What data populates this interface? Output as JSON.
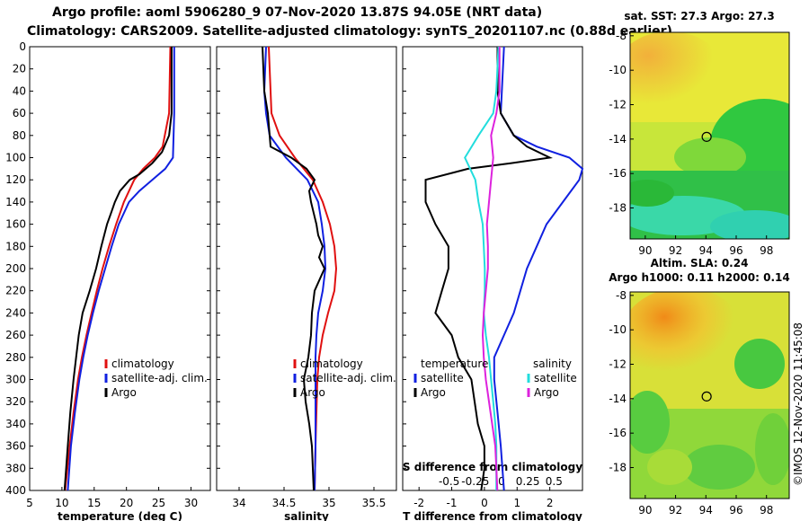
{
  "header": {
    "line1": "Argo profile: aoml 5906280_9 07-Nov-2020 13.87S 94.05E (NRT data)",
    "line2": "Climatology: CARS2009. Satellite-adjusted climatology: synTS_20201107.nc (0.88d earlier)"
  },
  "colors": {
    "climatology": "#e01010",
    "satellite_clim": "#1020e0",
    "argo": "#000000",
    "sat_temp_diff": "#22dddd",
    "sat_sal_diff": "#dd22dd"
  },
  "legend": {
    "climatology": "climatology",
    "satellite": "satellite-adj. clim.",
    "argo": "Argo",
    "diff_temp_title": "temperature",
    "diff_sal_title": "salinity",
    "diff_satellite": "satellite",
    "diff_argo": "Argo"
  },
  "chart_data": [
    {
      "type": "line",
      "name": "temperature-profile",
      "xlabel": "temperature (deg C)",
      "ylabel": "",
      "xlim": [
        5,
        33
      ],
      "ylim": [
        400,
        0
      ],
      "xticks": [
        5,
        10,
        15,
        20,
        25,
        30
      ],
      "yticks": [
        0,
        20,
        40,
        60,
        80,
        100,
        120,
        140,
        160,
        180,
        200,
        220,
        240,
        260,
        280,
        300,
        320,
        340,
        360,
        380,
        400
      ],
      "series": [
        {
          "name": "climatology",
          "depth": [
            0,
            60,
            90,
            100,
            110,
            120,
            140,
            160,
            180,
            200,
            220,
            240,
            260,
            280,
            300,
            330,
            360,
            400
          ],
          "values": [
            26.8,
            26.6,
            25.6,
            24.4,
            22.6,
            21.2,
            19.6,
            18.4,
            17.3,
            16.3,
            15.4,
            14.6,
            13.8,
            13.1,
            12.5,
            11.8,
            11.2,
            10.5
          ]
        },
        {
          "name": "satellite-adj. clim.",
          "depth": [
            0,
            60,
            100,
            110,
            120,
            130,
            140,
            160,
            180,
            200,
            220,
            240,
            260,
            280,
            300,
            330,
            360,
            400
          ],
          "values": [
            27.4,
            27.4,
            27.2,
            26.0,
            24.0,
            22.0,
            20.4,
            18.8,
            17.7,
            16.7,
            15.7,
            14.8,
            14.0,
            13.3,
            12.7,
            12.0,
            11.4,
            10.9
          ]
        },
        {
          "name": "Argo",
          "depth": [
            0,
            60,
            80,
            95,
            105,
            115,
            120,
            130,
            140,
            150,
            160,
            180,
            200,
            220,
            240,
            260,
            280,
            300,
            330,
            360,
            400
          ],
          "values": [
            27.0,
            27.0,
            26.6,
            25.5,
            24.0,
            22.0,
            20.5,
            19.0,
            18.2,
            17.6,
            17.0,
            16.1,
            15.3,
            14.3,
            13.2,
            12.6,
            12.2,
            11.8,
            11.3,
            10.9,
            10.4
          ]
        }
      ]
    },
    {
      "type": "line",
      "name": "salinity-profile",
      "xlabel": "salinity",
      "xlim": [
        33.75,
        35.75
      ],
      "ylim": [
        400,
        0
      ],
      "xticks": [
        34,
        34.5,
        35,
        35.5
      ],
      "series": [
        {
          "name": "climatology",
          "depth": [
            0,
            60,
            80,
            100,
            120,
            140,
            160,
            180,
            200,
            220,
            240,
            260,
            280,
            300,
            330,
            360,
            400
          ],
          "values": [
            34.33,
            34.36,
            34.45,
            34.62,
            34.82,
            34.93,
            35.01,
            35.06,
            35.08,
            35.06,
            34.99,
            34.93,
            34.89,
            34.87,
            34.86,
            34.85,
            34.84
          ]
        },
        {
          "name": "satellite-adj. clim.",
          "depth": [
            0,
            40,
            60,
            80,
            100,
            120,
            140,
            160,
            180,
            200,
            220,
            240,
            260,
            280,
            300,
            330,
            360,
            400
          ],
          "values": [
            34.3,
            34.28,
            34.3,
            34.34,
            34.52,
            34.76,
            34.88,
            34.92,
            34.95,
            34.96,
            34.93,
            34.88,
            34.86,
            34.85,
            34.85,
            34.85,
            34.85,
            34.84
          ]
        },
        {
          "name": "Argo",
          "depth": [
            0,
            40,
            60,
            90,
            100,
            110,
            120,
            130,
            140,
            150,
            160,
            170,
            180,
            190,
            200,
            220,
            240,
            260,
            280,
            300,
            320,
            340,
            360,
            400
          ],
          "values": [
            34.26,
            34.28,
            34.32,
            34.35,
            34.58,
            34.75,
            34.84,
            34.78,
            34.8,
            34.83,
            34.86,
            34.88,
            34.93,
            34.89,
            34.95,
            34.84,
            34.81,
            34.8,
            34.77,
            34.72,
            34.74,
            34.78,
            34.81,
            34.83
          ]
        }
      ]
    },
    {
      "type": "line",
      "name": "difference-profile",
      "xlabel": "T difference from climatology",
      "xlabel_top": "S difference from climatology",
      "xlim": [
        -2.5,
        3
      ],
      "ylim": [
        400,
        0
      ],
      "xticks": [
        -2,
        -1,
        0,
        1,
        2
      ],
      "xticks_top": [
        -0.5,
        -0.25,
        0,
        0.25,
        0.5
      ],
      "series": [
        {
          "name": "satellite (temperature)",
          "depth": [
            0,
            60,
            80,
            90,
            100,
            110,
            120,
            140,
            160,
            180,
            200,
            220,
            240,
            260,
            280,
            300,
            330,
            360,
            400
          ],
          "values": [
            0.6,
            0.5,
            0.9,
            1.6,
            2.6,
            3.0,
            2.9,
            2.4,
            1.9,
            1.6,
            1.3,
            1.1,
            0.9,
            0.6,
            0.3,
            0.3,
            0.4,
            0.5,
            0.6
          ]
        },
        {
          "name": "Argo (temperature)",
          "depth": [
            0,
            40,
            60,
            80,
            90,
            100,
            105,
            110,
            120,
            140,
            160,
            180,
            200,
            220,
            240,
            260,
            280,
            300,
            320,
            340,
            360,
            380,
            400
          ],
          "values": [
            0.4,
            0.4,
            0.5,
            0.9,
            1.3,
            2.0,
            0.8,
            -0.5,
            -1.8,
            -1.8,
            -1.5,
            -1.1,
            -1.1,
            -1.3,
            -1.5,
            -1.0,
            -0.8,
            -0.4,
            -0.3,
            -0.2,
            0.0,
            0.0,
            -0.1
          ]
        },
        {
          "name": "satellite (salinity)",
          "depth": [
            0,
            40,
            60,
            80,
            100,
            120,
            140,
            160,
            180,
            200,
            220,
            240,
            260,
            280,
            300,
            320,
            340,
            360,
            380,
            400
          ],
          "values": [
            -0.03,
            -0.05,
            -0.08,
            -0.22,
            -0.35,
            -0.25,
            -0.22,
            -0.18,
            -0.17,
            -0.16,
            -0.16,
            -0.17,
            -0.15,
            -0.12,
            -0.1,
            -0.08,
            -0.06,
            -0.05,
            -0.05,
            -0.05
          ]
        },
        {
          "name": "Argo (salinity)",
          "depth": [
            0,
            40,
            60,
            80,
            100,
            120,
            140,
            160,
            180,
            200,
            220,
            240,
            260,
            280,
            300,
            320,
            340,
            360,
            380,
            400
          ],
          "values": [
            -0.02,
            -0.02,
            -0.05,
            -0.1,
            -0.08,
            -0.1,
            -0.12,
            -0.14,
            -0.13,
            -0.13,
            -0.15,
            -0.17,
            -0.18,
            -0.17,
            -0.15,
            -0.12,
            -0.09,
            -0.06,
            -0.05,
            -0.04
          ]
        }
      ]
    },
    {
      "type": "heatmap",
      "name": "sst-map",
      "title": "sat. SST: 27.3 Argo: 27.3",
      "xlim": [
        89,
        99.5
      ],
      "ylim": [
        -19.8,
        -7.8
      ],
      "xticks": [
        90,
        92,
        94,
        96,
        98
      ],
      "yticks": [
        -8,
        -10,
        -12,
        -14,
        -16,
        -18
      ],
      "argo_position": [
        94.05,
        -13.87
      ]
    },
    {
      "type": "heatmap",
      "name": "sla-map",
      "title_line1": "Altim. SLA: 0.24",
      "title_line2": "Argo h1000: 0.11 h2000: 0.14",
      "xlim": [
        89,
        99.5
      ],
      "ylim": [
        -19.8,
        -7.8
      ],
      "xticks": [
        90,
        92,
        94,
        96,
        98
      ],
      "yticks": [
        -8,
        -10,
        -12,
        -14,
        -16,
        -18
      ],
      "argo_position": [
        94.05,
        -13.87
      ]
    }
  ],
  "footer": {
    "credit": "©IMOS 12-Nov-2020 11:45:08"
  }
}
